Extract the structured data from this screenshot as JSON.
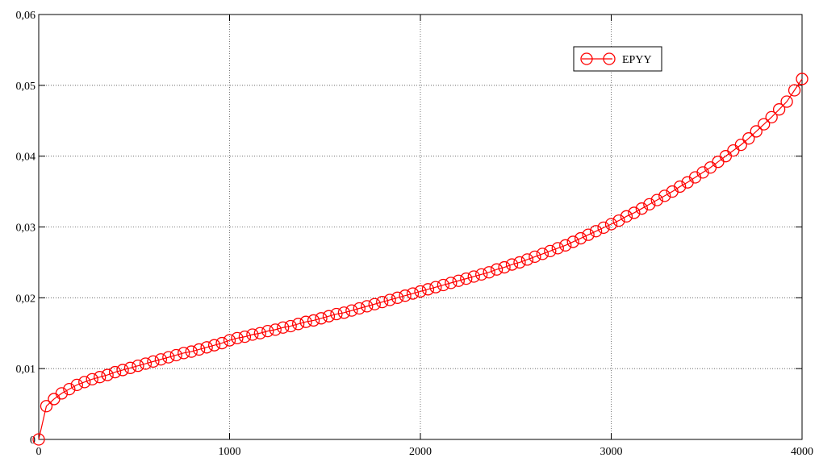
{
  "chart_data": {
    "type": "line",
    "x": [
      0,
      40,
      80,
      120,
      160,
      200,
      240,
      280,
      320,
      360,
      400,
      440,
      480,
      520,
      560,
      600,
      640,
      680,
      720,
      760,
      800,
      840,
      880,
      920,
      960,
      1000,
      1040,
      1080,
      1120,
      1160,
      1200,
      1240,
      1280,
      1320,
      1360,
      1400,
      1440,
      1480,
      1520,
      1560,
      1600,
      1640,
      1680,
      1720,
      1760,
      1800,
      1840,
      1880,
      1920,
      1960,
      2000,
      2040,
      2080,
      2120,
      2160,
      2200,
      2240,
      2280,
      2320,
      2360,
      2400,
      2440,
      2480,
      2520,
      2560,
      2600,
      2640,
      2680,
      2720,
      2760,
      2800,
      2840,
      2880,
      2920,
      2960,
      3000,
      3040,
      3080,
      3120,
      3160,
      3200,
      3240,
      3280,
      3320,
      3360,
      3400,
      3440,
      3480,
      3520,
      3560,
      3600,
      3640,
      3680,
      3720,
      3760,
      3800,
      3840,
      3880,
      3920,
      3960,
      4000
    ],
    "series": [
      {
        "name": "EPYY",
        "color": "#ff0000",
        "values": [
          0,
          0.0047,
          0.0057,
          0.0065,
          0.0071,
          0.0077,
          0.0081,
          0.0085,
          0.0088,
          0.0091,
          0.0095,
          0.0098,
          0.0101,
          0.0104,
          0.0107,
          0.011,
          0.0113,
          0.0116,
          0.0119,
          0.0122,
          0.0124,
          0.0127,
          0.013,
          0.0133,
          0.0136,
          0.014,
          0.0143,
          0.0145,
          0.0148,
          0.015,
          0.0153,
          0.0155,
          0.0158,
          0.016,
          0.0163,
          0.0166,
          0.0168,
          0.0171,
          0.0174,
          0.0177,
          0.0179,
          0.0182,
          0.0185,
          0.0188,
          0.0191,
          0.0194,
          0.0197,
          0.02,
          0.0203,
          0.0206,
          0.0209,
          0.0212,
          0.0215,
          0.0218,
          0.0221,
          0.0224,
          0.0227,
          0.023,
          0.0233,
          0.0236,
          0.024,
          0.0243,
          0.0247,
          0.025,
          0.0254,
          0.0258,
          0.0262,
          0.0266,
          0.027,
          0.0274,
          0.0279,
          0.0284,
          0.0289,
          0.0294,
          0.0299,
          0.0304,
          0.0309,
          0.0315,
          0.032,
          0.0326,
          0.0332,
          0.0338,
          0.0344,
          0.035,
          0.0357,
          0.0363,
          0.037,
          0.0377,
          0.0384,
          0.0392,
          0.04,
          0.0408,
          0.0416,
          0.0425,
          0.0435,
          0.0445,
          0.0455,
          0.0466,
          0.0477,
          0.0493,
          0.0509
        ]
      }
    ],
    "xlim": [
      0,
      4000
    ],
    "xticks": [
      0,
      1000,
      2000,
      3000,
      4000
    ],
    "ylim": [
      0,
      0.06
    ],
    "yticks": [
      0,
      {
        "value": 0.01,
        "label": "0,01"
      },
      {
        "value": 0.02,
        "label": "0,02"
      },
      {
        "value": 0.03,
        "label": "0,03"
      },
      {
        "value": 0.04,
        "label": "0,04"
      },
      {
        "value": 0.05,
        "label": "0,05"
      },
      {
        "value": 0.06,
        "label": "0,06"
      }
    ],
    "grid": true,
    "legend": "upper right"
  }
}
